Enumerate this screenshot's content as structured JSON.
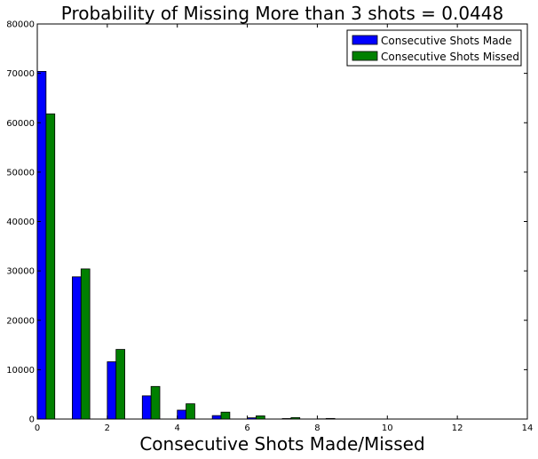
{
  "chart_data": {
    "type": "bar",
    "title": "Probability of Missing More than 3 shots = 0.0448",
    "xlabel": "Consecutive Shots Made/Missed",
    "ylabel": "",
    "xlim": [
      0,
      14
    ],
    "ylim": [
      0,
      80000
    ],
    "xticks": [
      0,
      2,
      4,
      6,
      8,
      10,
      12,
      14
    ],
    "yticks": [
      0,
      10000,
      20000,
      30000,
      40000,
      50000,
      60000,
      70000,
      80000
    ],
    "bar_offsets": [
      0,
      0.25
    ],
    "bar_width": 0.25,
    "x": [
      0,
      1,
      2,
      3,
      4,
      5,
      6,
      7,
      8
    ],
    "series": [
      {
        "name": "Consecutive Shots Made",
        "color": "#0000ff",
        "values": [
          70400,
          28800,
          11600,
          4700,
          1800,
          700,
          250,
          100,
          40
        ]
      },
      {
        "name": "Consecutive Shots Missed",
        "color": "#008000",
        "values": [
          61800,
          30400,
          14100,
          6600,
          3100,
          1400,
          650,
          300,
          120
        ]
      }
    ],
    "legend_position": "top-right",
    "grid": false
  }
}
